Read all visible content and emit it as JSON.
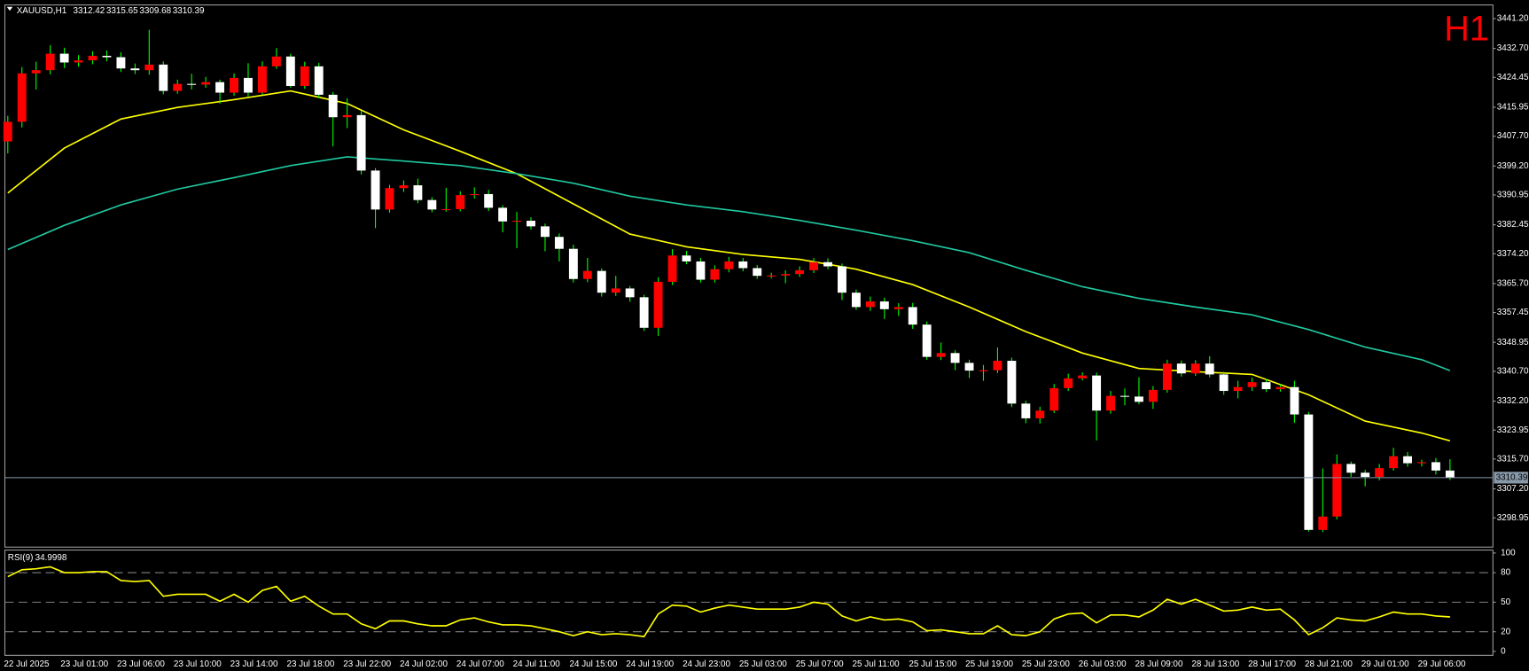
{
  "chart_data": [
    {
      "type": "candlestick",
      "symbol": "XAUUSD,H1",
      "watermark": "H1",
      "categories": [
        "22 Jul 2025",
        null,
        null,
        null,
        "23 Jul 01:00",
        null,
        null,
        null,
        "23 Jul 06:00",
        null,
        null,
        null,
        "23 Jul 10:00",
        null,
        null,
        null,
        "23 Jul 14:00",
        null,
        null,
        null,
        "23 Jul 18:00",
        null,
        null,
        null,
        "23 Jul 22:00",
        null,
        null,
        null,
        "24 Jul 02:00",
        null,
        null,
        null,
        "24 Jul 07:00",
        null,
        null,
        null,
        "24 Jul 11:00",
        null,
        null,
        null,
        "24 Jul 15:00",
        null,
        null,
        null,
        "24 Jul 19:00",
        null,
        null,
        null,
        "24 Jul 23:00",
        null,
        null,
        null,
        "25 Jul 03:00",
        null,
        null,
        null,
        "25 Jul 07:00",
        null,
        null,
        null,
        "25 Jul 11:00",
        null,
        null,
        null,
        "25 Jul 15:00",
        null,
        null,
        null,
        "25 Jul 19:00",
        null,
        null,
        null,
        "25 Jul 23:00",
        null,
        null,
        null,
        "26 Jul 03:00",
        null,
        null,
        null,
        "28 Jul 09:00",
        null,
        null,
        null,
        "28 Jul 13:00",
        null,
        null,
        null,
        "28 Jul 17:00",
        null,
        null,
        null,
        "28 Jul 21:00",
        null,
        null,
        null,
        "29 Jul 01:00",
        null,
        null,
        null,
        "29 Jul 06:00",
        null,
        null
      ],
      "open": [
        3406.2,
        3411.8,
        3425.6,
        3426.5,
        3431.2,
        3428.7,
        3429.3,
        3430.6,
        3430.2,
        3427.0,
        3426.5,
        3428.1,
        3420.6,
        3422.6,
        3422.4,
        3423.1,
        3420.1,
        3424.3,
        3420.1,
        3427.6,
        3430.4,
        3422.0,
        3427.6,
        3419.5,
        3413.1,
        3413.7,
        3397.9,
        3386.8,
        3392.9,
        3393.7,
        3389.5,
        3386.8,
        3386.9,
        3390.9,
        3391.2,
        3387.3,
        3383.4,
        3383.6,
        3382.0,
        3379.0,
        3375.6,
        3367.0,
        3369.3,
        3363.1,
        3364.3,
        3361.8,
        3353.1,
        3366.2,
        3373.7,
        3372.0,
        3366.8,
        3369.8,
        3372.0,
        3370.1,
        3367.9,
        3368.0,
        3368.4,
        3369.5,
        3371.8,
        3370.6,
        3363.1,
        3359.0,
        3360.6,
        3358.4,
        3359.0,
        3354.0,
        3344.8,
        3345.9,
        3343.1,
        3340.9,
        3341.0,
        3343.7,
        3331.5,
        3327.3,
        3329.5,
        3335.9,
        3338.7,
        3339.5,
        3329.5,
        3333.7,
        3333.5,
        3332.0,
        3335.4,
        3342.9,
        3340.1,
        3342.9,
        3339.8,
        3335.1,
        3336.2,
        3337.6,
        3335.6,
        3336.2,
        3328.4,
        3295.5,
        3299.3,
        3314.3,
        3311.8,
        3310.6,
        3313.1,
        3316.5,
        3314.5,
        3314.8,
        3312.42
      ],
      "high": [
        3413.5,
        3427.4,
        3428.9,
        3433.6,
        3432.9,
        3430.8,
        3431.9,
        3432.1,
        3431.6,
        3428.4,
        3438.0,
        3429.0,
        3423.8,
        3425.5,
        3424.6,
        3423.8,
        3425.6,
        3428.5,
        3429.0,
        3432.8,
        3431.2,
        3428.9,
        3428.6,
        3420.3,
        3418.5,
        3414.9,
        3398.6,
        3393.8,
        3395.1,
        3395.6,
        3390.3,
        3393.0,
        3392.0,
        3393.1,
        3392.4,
        3388.0,
        3386.1,
        3384.6,
        3382.8,
        3380.0,
        3376.8,
        3373.0,
        3370.0,
        3367.9,
        3365.0,
        3362.5,
        3367.5,
        3375.5,
        3375.0,
        3373.0,
        3370.9,
        3373.3,
        3373.0,
        3371.0,
        3368.8,
        3369.5,
        3370.6,
        3373.0,
        3372.9,
        3371.4,
        3364.0,
        3362.0,
        3361.7,
        3360.1,
        3360.2,
        3354.9,
        3348.9,
        3346.7,
        3344.0,
        3342.5,
        3347.5,
        3344.6,
        3332.3,
        3330.6,
        3337.1,
        3340.0,
        3340.4,
        3340.3,
        3335.1,
        3335.8,
        3339.0,
        3336.5,
        3344.0,
        3343.8,
        3343.9,
        3345.0,
        3340.6,
        3338.0,
        3338.9,
        3338.5,
        3337.0,
        3338.0,
        3329.1,
        3313.0,
        3317.0,
        3315.0,
        3312.6,
        3314.3,
        3318.9,
        3317.7,
        3315.5,
        3316.0,
        3315.65
      ],
      "low": [
        3402.8,
        3410.2,
        3421.0,
        3425.3,
        3427.1,
        3427.5,
        3428.2,
        3429.0,
        3426.0,
        3425.4,
        3425.2,
        3419.6,
        3419.8,
        3421.0,
        3421.5,
        3417.0,
        3419.2,
        3419.0,
        3419.5,
        3426.9,
        3421.5,
        3421.2,
        3418.6,
        3404.8,
        3410.0,
        3396.8,
        3381.5,
        3385.9,
        3391.8,
        3388.6,
        3386.0,
        3386.2,
        3386.3,
        3389.9,
        3386.4,
        3380.3,
        3375.8,
        3381.1,
        3374.9,
        3372.0,
        3366.0,
        3366.1,
        3362.0,
        3362.2,
        3360.5,
        3352.2,
        3350.8,
        3365.3,
        3371.2,
        3366.0,
        3366.0,
        3368.9,
        3369.2,
        3367.0,
        3367.2,
        3365.8,
        3367.6,
        3368.7,
        3369.8,
        3361.0,
        3358.2,
        3357.9,
        3355.6,
        3356.5,
        3352.8,
        3344.0,
        3343.9,
        3341.0,
        3338.8,
        3338.0,
        3340.2,
        3330.5,
        3325.9,
        3325.8,
        3328.8,
        3335.1,
        3338.1,
        3321.0,
        3328.6,
        3331.0,
        3331.3,
        3330.0,
        3334.6,
        3339.2,
        3339.4,
        3339.0,
        3334.0,
        3333.0,
        3335.1,
        3334.8,
        3334.9,
        3326.0,
        3295.0,
        3294.9,
        3298.5,
        3310.6,
        3307.9,
        3309.6,
        3312.4,
        3313.5,
        3313.6,
        3311.3,
        3309.68
      ],
      "close": [
        3411.8,
        3425.6,
        3426.5,
        3431.2,
        3428.7,
        3429.3,
        3430.6,
        3430.2,
        3427.0,
        3426.5,
        3428.1,
        3420.6,
        3422.6,
        3422.4,
        3423.1,
        3420.1,
        3424.3,
        3420.1,
        3427.6,
        3430.4,
        3422.0,
        3427.6,
        3419.5,
        3413.1,
        3413.7,
        3397.9,
        3386.8,
        3392.9,
        3393.7,
        3389.5,
        3386.8,
        3386.9,
        3390.9,
        3391.2,
        3387.3,
        3383.4,
        3383.6,
        3382.0,
        3379.0,
        3375.6,
        3367.0,
        3369.3,
        3363.1,
        3364.3,
        3361.8,
        3353.1,
        3366.2,
        3373.7,
        3372.0,
        3366.8,
        3369.8,
        3372.0,
        3370.1,
        3367.9,
        3368.0,
        3368.4,
        3369.5,
        3371.8,
        3370.6,
        3363.1,
        3359.0,
        3360.6,
        3358.4,
        3359.0,
        3354.0,
        3344.8,
        3345.9,
        3343.1,
        3340.9,
        3341.0,
        3343.7,
        3331.5,
        3327.3,
        3329.5,
        3335.9,
        3338.7,
        3339.5,
        3329.5,
        3333.7,
        3333.5,
        3332.0,
        3335.4,
        3342.9,
        3340.1,
        3342.9,
        3339.8,
        3335.1,
        3336.2,
        3337.6,
        3335.6,
        3336.2,
        3328.4,
        3295.5,
        3299.3,
        3314.3,
        3311.8,
        3310.6,
        3313.1,
        3316.5,
        3314.5,
        3314.8,
        3312.42,
        3310.39
      ],
      "up_color": "#ff0000",
      "down_color": "#ffffff",
      "wick_color": "#00ff00",
      "price_line_color": "#8899aa",
      "watermark_color": "#ff0000",
      "ma": [
        {
          "color": "#ffff00",
          "x": [
            0,
            4,
            8,
            12,
            16,
            20,
            24,
            28,
            32,
            36,
            40,
            44,
            48,
            52,
            56,
            60,
            64,
            68,
            72,
            76,
            80,
            84,
            88,
            92,
            96,
            100,
            102
          ],
          "values": [
            3391.5,
            3404.3,
            3412.6,
            3415.9,
            3418.1,
            3420.6,
            3417.0,
            3409.5,
            3403.4,
            3397.0,
            3388.4,
            3379.8,
            3376.2,
            3374.0,
            3372.6,
            3369.8,
            3365.4,
            3359.0,
            3352.0,
            3345.9,
            3341.5,
            3340.6,
            3339.8,
            3334.0,
            3326.5,
            3323.1,
            3320.9
          ]
        },
        {
          "color": "#20c8a0",
          "x": [
            0,
            4,
            8,
            12,
            16,
            20,
            24,
            28,
            32,
            36,
            40,
            44,
            48,
            52,
            56,
            60,
            64,
            68,
            72,
            76,
            80,
            84,
            88,
            92,
            96,
            100,
            102
          ],
          "values": [
            3375.4,
            3382.3,
            3388.1,
            3392.6,
            3395.9,
            3399.3,
            3401.8,
            3400.6,
            3399.3,
            3397.0,
            3394.3,
            3390.6,
            3388.1,
            3386.2,
            3383.7,
            3380.9,
            3377.9,
            3374.5,
            3369.5,
            3364.8,
            3361.5,
            3359.0,
            3356.8,
            3352.6,
            3347.6,
            3344.0,
            3340.9
          ]
        }
      ],
      "ylim": [
        3290.6,
        3445.1
      ],
      "yticks": [
        {
          "value": 3441.2,
          "label": "3441.20"
        },
        {
          "value": 3432.7,
          "label": "3432.70"
        },
        3424.45,
        3415.95,
        {
          "value": 3407.7,
          "label": "3407.70"
        },
        {
          "value": 3399.2,
          "label": "3399.20"
        },
        3390.95,
        3382.45,
        {
          "value": 3374.2,
          "label": "3374.20"
        },
        {
          "value": 3365.7,
          "label": "3365.70"
        },
        3357.45,
        3348.95,
        {
          "value": 3340.7,
          "label": "3340.70"
        },
        {
          "value": 3332.2,
          "label": "3332.20"
        },
        3323.95,
        {
          "value": 3315.7,
          "label": "3315.70"
        },
        {
          "value": 3307.2,
          "label": "3307.20"
        },
        3298.95
      ]
    },
    {
      "type": "line",
      "title": "RSI(9)",
      "color": "#ffff00",
      "level_color": "#808080",
      "values": [
        76,
        83,
        84,
        86,
        80,
        80,
        81,
        81,
        72,
        71,
        72,
        56,
        58,
        58,
        58,
        51,
        58,
        50,
        62,
        66,
        51,
        56,
        46,
        38,
        38,
        28,
        23,
        31,
        31,
        28,
        26,
        26,
        32,
        34,
        30,
        27,
        27,
        26,
        23,
        20,
        16,
        20,
        17,
        18,
        17,
        15,
        38,
        47,
        46,
        40,
        44,
        47,
        45,
        43,
        43,
        43,
        45,
        50,
        48,
        36,
        31,
        35,
        32,
        33,
        30,
        21,
        22,
        20,
        18,
        18,
        26,
        17,
        16,
        20,
        33,
        38,
        39,
        29,
        37,
        37,
        35,
        42,
        53,
        48,
        53,
        47,
        41,
        42,
        45,
        42,
        43,
        32,
        17,
        24,
        34,
        32,
        31,
        35,
        40,
        38,
        38,
        36,
        34.9998
      ],
      "levels": [
        80,
        50,
        20
      ],
      "ylim": [
        -4,
        103
      ],
      "yticks": [
        100,
        80,
        50,
        20,
        0
      ]
    }
  ]
}
